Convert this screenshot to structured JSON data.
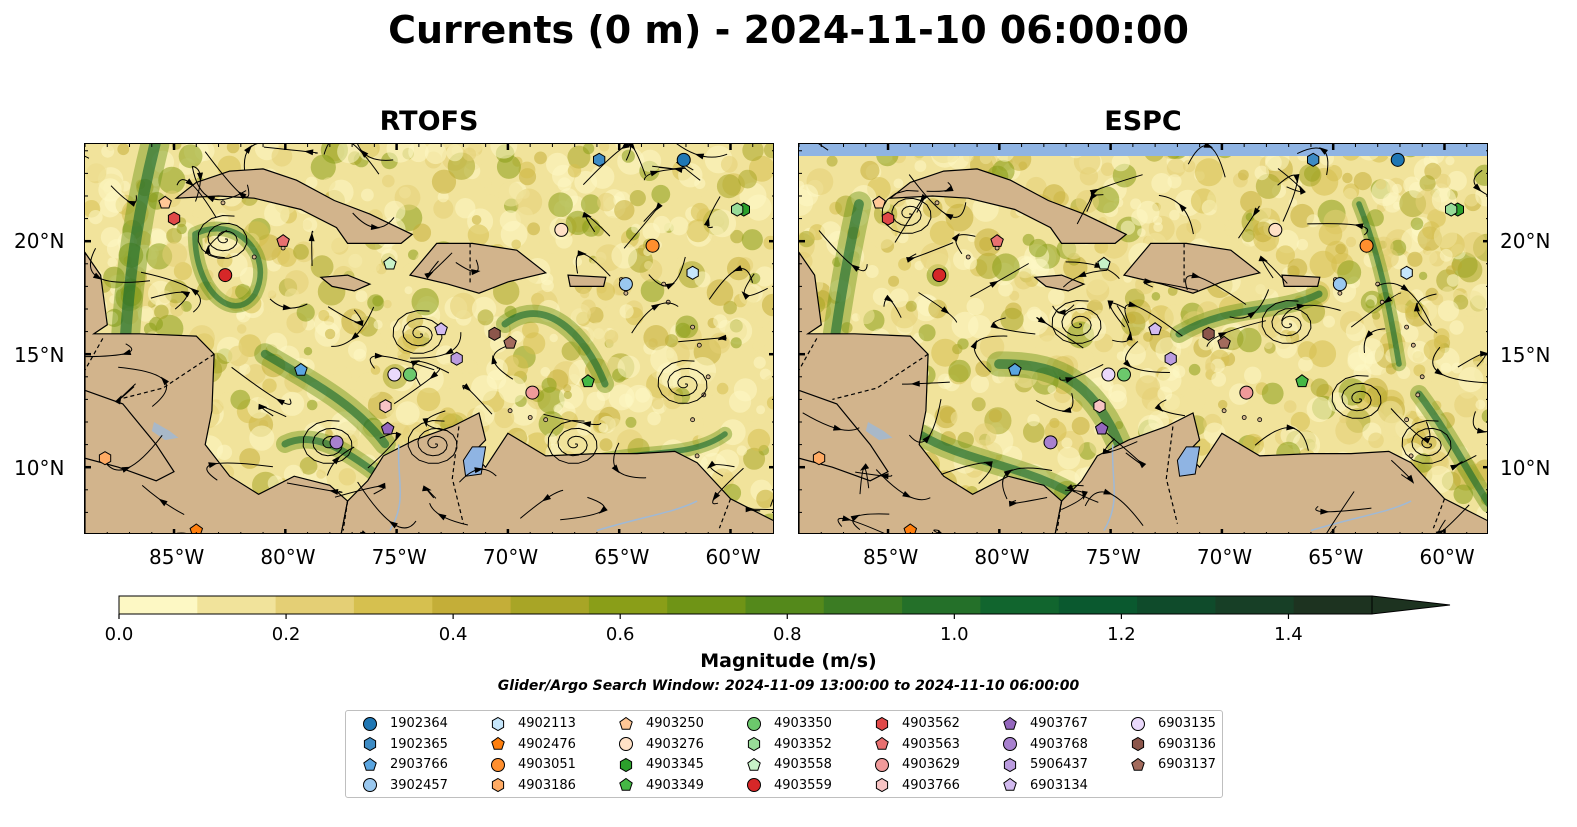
{
  "title": "Currents (0 m) - 2024-11-10 06:00:00",
  "panels": [
    {
      "name": "RTOFS"
    },
    {
      "name": "ESPC"
    }
  ],
  "axes": {
    "lat_labels": [
      "20°N",
      "15°N",
      "10°N"
    ],
    "lat_values": [
      20,
      15,
      10
    ],
    "lon_labels": [
      "85°W",
      "80°W",
      "75°W",
      "70°W",
      "65°W",
      "60°W"
    ],
    "lon_values": [
      -85,
      -80,
      -75,
      -70,
      -65,
      -60
    ],
    "lon_range": [
      -89,
      -58
    ],
    "lat_range": [
      7,
      24.3
    ]
  },
  "colorbar": {
    "label": "Magnitude (m/s)",
    "tick_labels": [
      "0.0",
      "0.2",
      "0.4",
      "0.6",
      "0.8",
      "1.0",
      "1.2",
      "1.4"
    ],
    "tick_values": [
      0,
      0.2,
      0.4,
      0.6,
      0.8,
      1.0,
      1.2,
      1.4
    ],
    "range": [
      0,
      1.5
    ],
    "extend": "max",
    "colors": [
      "#fdf8c4",
      "#f1e39b",
      "#e4cf75",
      "#d6c04f",
      "#c4ae38",
      "#a8a526",
      "#8a9e18",
      "#6f9416",
      "#54891b",
      "#3b7c23",
      "#247029",
      "#11652e",
      "#0a592f",
      "#0f4b2b",
      "#173f26",
      "#1d3320"
    ]
  },
  "search_window": "Glider/Argo Search Window: 2024-11-09 13:00:00 to 2024-11-10 06:00:00",
  "land_color": "#d2b48c",
  "water_body_color": "#8fb4e3",
  "legend": [
    {
      "label": "1902364",
      "shape": "circle",
      "color": "#1f77b4"
    },
    {
      "label": "1902365",
      "shape": "hexagon",
      "color": "#3d8bc4"
    },
    {
      "label": "2903766",
      "shape": "pentagon",
      "color": "#5aa5e0"
    },
    {
      "label": "3902457",
      "shape": "circle",
      "color": "#9ac8ef"
    },
    {
      "label": "4902113",
      "shape": "hexagon",
      "color": "#c6e6fb"
    },
    {
      "label": "4902476",
      "shape": "pentagon",
      "color": "#ff7f0e"
    },
    {
      "label": "4903051",
      "shape": "circle",
      "color": "#ff8f2e"
    },
    {
      "label": "4903186",
      "shape": "hexagon",
      "color": "#ffab64"
    },
    {
      "label": "4903250",
      "shape": "pentagon",
      "color": "#ffc796"
    },
    {
      "label": "4903276",
      "shape": "circle",
      "color": "#ffe1c6"
    },
    {
      "label": "4903345",
      "shape": "hexagon",
      "color": "#2ca02c"
    },
    {
      "label": "4903349",
      "shape": "pentagon",
      "color": "#45b845"
    },
    {
      "label": "4903350",
      "shape": "circle",
      "color": "#6cc86c"
    },
    {
      "label": "4903352",
      "shape": "hexagon",
      "color": "#98dc98"
    },
    {
      "label": "4903558",
      "shape": "pentagon",
      "color": "#c8f2c8"
    },
    {
      "label": "4903559",
      "shape": "circle",
      "color": "#d62728"
    },
    {
      "label": "4903562",
      "shape": "hexagon",
      "color": "#e04848"
    },
    {
      "label": "4903563",
      "shape": "pentagon",
      "color": "#e87070"
    },
    {
      "label": "4903629",
      "shape": "circle",
      "color": "#f09a9a"
    },
    {
      "label": "4903766",
      "shape": "hexagon",
      "color": "#f8c4c4"
    },
    {
      "label": "4903767",
      "shape": "pentagon",
      "color": "#9467bd"
    },
    {
      "label": "4903768",
      "shape": "circle",
      "color": "#a881cf"
    },
    {
      "label": "5906437",
      "shape": "hexagon",
      "color": "#bb9cdf"
    },
    {
      "label": "6903134",
      "shape": "pentagon",
      "color": "#d2baef"
    },
    {
      "label": "6903135",
      "shape": "circle",
      "color": "#ead9fb"
    },
    {
      "label": "6903136",
      "shape": "hexagon",
      "color": "#8c564b"
    },
    {
      "label": "6903137",
      "shape": "pentagon",
      "color": "#a36b5d"
    }
  ],
  "floats": [
    {
      "id": "1902364",
      "lon": -62.1,
      "lat": 23.6
    },
    {
      "id": "1902365",
      "lon": -65.9,
      "lat": 23.6
    },
    {
      "id": "2903766",
      "lon": -79.3,
      "lat": 14.3
    },
    {
      "id": "3902457",
      "lon": -64.7,
      "lat": 18.1
    },
    {
      "id": "4902113",
      "lon": -61.7,
      "lat": 18.6
    },
    {
      "id": "4902476",
      "lon": -84.0,
      "lat": 7.2
    },
    {
      "id": "4903051",
      "lon": -63.5,
      "lat": 19.8
    },
    {
      "id": "4903186",
      "lon": -88.1,
      "lat": 10.4
    },
    {
      "id": "4903250",
      "lon": -85.4,
      "lat": 21.7
    },
    {
      "id": "4903276",
      "lon": -67.6,
      "lat": 20.5
    },
    {
      "id": "4903345",
      "lon": -59.4,
      "lat": 21.4
    },
    {
      "id": "4903349",
      "lon": -66.4,
      "lat": 13.8
    },
    {
      "id": "4903350",
      "lon": -74.4,
      "lat": 14.1
    },
    {
      "id": "4903352",
      "lon": -59.7,
      "lat": 21.4
    },
    {
      "id": "4903558",
      "lon": -75.3,
      "lat": 19.0
    },
    {
      "id": "4903559",
      "lon": -82.7,
      "lat": 18.5
    },
    {
      "id": "4903562",
      "lon": -85.0,
      "lat": 21.0
    },
    {
      "id": "4903563",
      "lon": -80.1,
      "lat": 20.0
    },
    {
      "id": "4903629",
      "lon": -68.9,
      "lat": 13.3
    },
    {
      "id": "4903766",
      "lon": -75.5,
      "lat": 12.7
    },
    {
      "id": "4903767",
      "lon": -75.4,
      "lat": 11.7
    },
    {
      "id": "4903768",
      "lon": -77.7,
      "lat": 11.1
    },
    {
      "id": "5906437",
      "lon": -72.3,
      "lat": 14.8
    },
    {
      "id": "6903134",
      "lon": -73.0,
      "lat": 16.1
    },
    {
      "id": "6903135",
      "lon": -75.1,
      "lat": 14.1
    },
    {
      "id": "6903136",
      "lon": -70.6,
      "lat": 15.9
    },
    {
      "id": "6903137",
      "lon": -69.9,
      "lat": 15.5
    }
  ]
}
